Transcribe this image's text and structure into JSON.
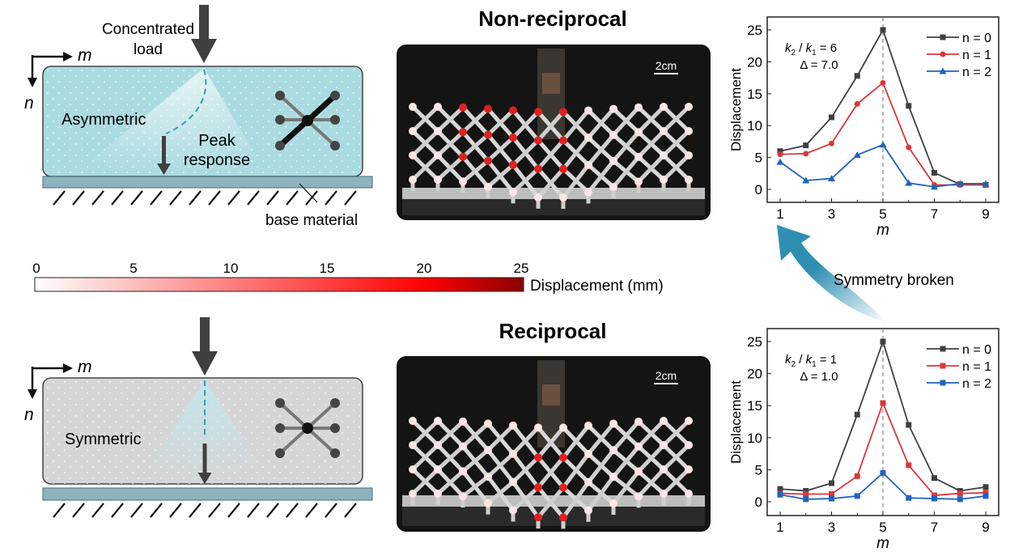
{
  "titles": {
    "top": "Non-reciprocal",
    "bottom": "Reciprocal"
  },
  "schematic_top": {
    "load_label_line1": "Concentrated",
    "load_label_line2": "load",
    "axis_m": "m",
    "axis_n": "n",
    "region_label": "Asymmetric",
    "peak_line1": "Peak",
    "peak_line2": "response",
    "base_label": "base material",
    "fill_color": "#aadbe1"
  },
  "schematic_bottom": {
    "axis_m": "m",
    "axis_n": "n",
    "region_label": "Symmetric",
    "fill_color": "#d6d6d6"
  },
  "photos": {
    "scale_top": "2cm",
    "scale_bottom": "2cm"
  },
  "colorbar": {
    "ticks": [
      "0",
      "5",
      "10",
      "15",
      "20",
      "25"
    ],
    "label": "Displacement (mm)",
    "colors": [
      "#ffffff",
      "#ff0000",
      "#8b0000"
    ]
  },
  "annotation": {
    "symmetry": "Symmetry broken",
    "arrow_color": "#2e8fb3"
  },
  "chart_data": [
    {
      "type": "line",
      "xlabel": "m",
      "ylabel": "Displacement",
      "x": [
        1,
        2,
        3,
        4,
        5,
        6,
        7,
        8,
        9
      ],
      "xticks": [
        "1",
        "3",
        "5",
        "7",
        "9"
      ],
      "yticks": [
        "0",
        "5",
        "10",
        "15",
        "20",
        "25"
      ],
      "ylim": [
        -2,
        27
      ],
      "xlim": [
        0.5,
        9.5
      ],
      "annotation_line1_k2": "k",
      "annotation_ratio": "2 / k",
      "annotation_eq": "1 = 6",
      "annotation_line2": "Δ = 7.0",
      "legend_placement": "top-right",
      "vline_x": 5,
      "series": [
        {
          "name": "n = 0",
          "color": "#404040",
          "marker": "square",
          "values": [
            6.0,
            6.9,
            11.3,
            17.8,
            25.0,
            13.1,
            2.6,
            0.8,
            0.7
          ]
        },
        {
          "name": "n = 1",
          "color": "#d9383c",
          "marker": "circle",
          "values": [
            5.5,
            5.6,
            7.2,
            13.4,
            16.7,
            6.6,
            0.7,
            0.7,
            0.7
          ]
        },
        {
          "name": "n = 2",
          "color": "#1f63c0",
          "marker": "triangle",
          "values": [
            4.3,
            1.4,
            1.7,
            5.4,
            7.0,
            1.0,
            0.4,
            0.9,
            0.9
          ]
        }
      ]
    },
    {
      "type": "line",
      "xlabel": "m",
      "ylabel": "Displacement",
      "x": [
        1,
        2,
        3,
        4,
        5,
        6,
        7,
        8,
        9
      ],
      "xticks": [
        "1",
        "3",
        "5",
        "7",
        "9"
      ],
      "yticks": [
        "0",
        "5",
        "10",
        "15",
        "20",
        "25"
      ],
      "ylim": [
        -2,
        27
      ],
      "xlim": [
        0.5,
        9.5
      ],
      "annotation_line1_k2": "k",
      "annotation_ratio": "2 / k",
      "annotation_eq": "1 = 1",
      "annotation_line2": "Δ = 1.0",
      "legend_placement": "top-right",
      "vline_x": 5,
      "series": [
        {
          "name": "n = 0",
          "color": "#404040",
          "marker": "square",
          "values": [
            2.0,
            1.7,
            2.9,
            13.6,
            25.0,
            12.0,
            3.7,
            1.7,
            2.3
          ]
        },
        {
          "name": "n = 1",
          "color": "#d9383c",
          "marker": "square",
          "values": [
            1.3,
            1.2,
            1.2,
            4.0,
            15.4,
            5.7,
            1.0,
            1.3,
            1.4
          ]
        },
        {
          "name": "n = 2",
          "color": "#1f63c0",
          "marker": "square",
          "values": [
            1.1,
            0.4,
            0.5,
            0.9,
            4.5,
            0.6,
            0.5,
            0.4,
            0.9
          ]
        }
      ]
    }
  ]
}
